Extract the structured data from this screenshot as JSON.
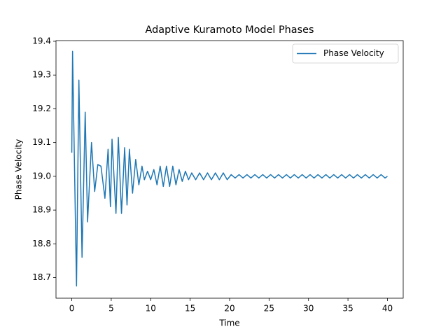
{
  "chart_data": {
    "type": "line",
    "title": "Adaptive Kuramoto Model Phases",
    "x_label": "Time",
    "y_label": "Phase Velocity",
    "xlim": [
      -2,
      42
    ],
    "ylim": [
      18.639,
      19.402
    ],
    "xticks": [
      0,
      5,
      10,
      15,
      20,
      25,
      30,
      35,
      40
    ],
    "yticks": [
      18.7,
      18.8,
      18.9,
      {
        "value": 19,
        "label": "19.0"
      },
      19.1,
      19.2,
      19.3,
      19.4
    ],
    "legend": "upper right",
    "x": [
      0,
      0.1,
      0.6,
      0.9,
      1.3,
      1.7,
      2.0,
      2.5,
      2.9,
      3.3,
      3.7,
      4.2,
      4.6,
      4.9,
      5.1,
      5.6,
      5.9,
      6.3,
      6.7,
      7.0,
      7.3,
      7.7,
      8.1,
      8.5,
      8.9,
      9.2,
      9.6,
      10.0,
      10.4,
      10.8,
      11.2,
      11.6,
      12.0,
      12.4,
      12.8,
      13.2,
      13.6,
      14.0,
      14.4,
      14.8,
      15.2,
      15.7,
      16.2,
      16.7,
      17.2,
      17.7,
      18.2,
      18.7,
      19.2,
      19.7,
      20.2,
      20.7,
      21.2,
      21.7,
      22.2,
      22.7,
      23.2,
      23.7,
      24.2,
      24.7,
      25.2,
      25.7,
      26.2,
      26.7,
      27.2,
      27.7,
      28.2,
      28.7,
      29.2,
      29.7,
      30.2,
      30.7,
      31.2,
      31.7,
      32.2,
      32.7,
      33.2,
      33.7,
      34.2,
      34.7,
      35.2,
      35.7,
      36.2,
      36.7,
      37.2,
      37.7,
      38.2,
      38.7,
      39.2,
      39.7,
      40
    ],
    "series": [
      {
        "name": "Phase Velocity",
        "color": "#1f77b4",
        "values": [
          19.07,
          19.37,
          18.675,
          19.285,
          18.76,
          19.19,
          18.865,
          19.1,
          18.955,
          19.035,
          19.03,
          18.935,
          19.08,
          18.91,
          19.11,
          18.89,
          19.115,
          18.89,
          19.085,
          18.915,
          19.08,
          18.95,
          19.05,
          18.975,
          19.03,
          18.99,
          19.015,
          18.99,
          19.02,
          18.975,
          19.03,
          18.97,
          19.03,
          18.97,
          19.03,
          18.975,
          19.02,
          18.985,
          19.015,
          18.99,
          19.01,
          18.99,
          19.01,
          18.99,
          19.01,
          18.99,
          19.01,
          18.99,
          19.01,
          18.99,
          19.005,
          18.995,
          19.005,
          18.995,
          19.005,
          18.995,
          19.005,
          18.995,
          19.005,
          18.995,
          19.005,
          18.995,
          19.005,
          18.995,
          19.005,
          18.995,
          19.005,
          18.995,
          19.005,
          18.995,
          19.005,
          18.995,
          19.005,
          18.995,
          19.005,
          18.995,
          19.005,
          18.995,
          19.005,
          18.995,
          19.005,
          18.995,
          19.005,
          18.995,
          19.005,
          18.995,
          19.005,
          18.995,
          19.005,
          18.995,
          19.0
        ]
      }
    ]
  }
}
